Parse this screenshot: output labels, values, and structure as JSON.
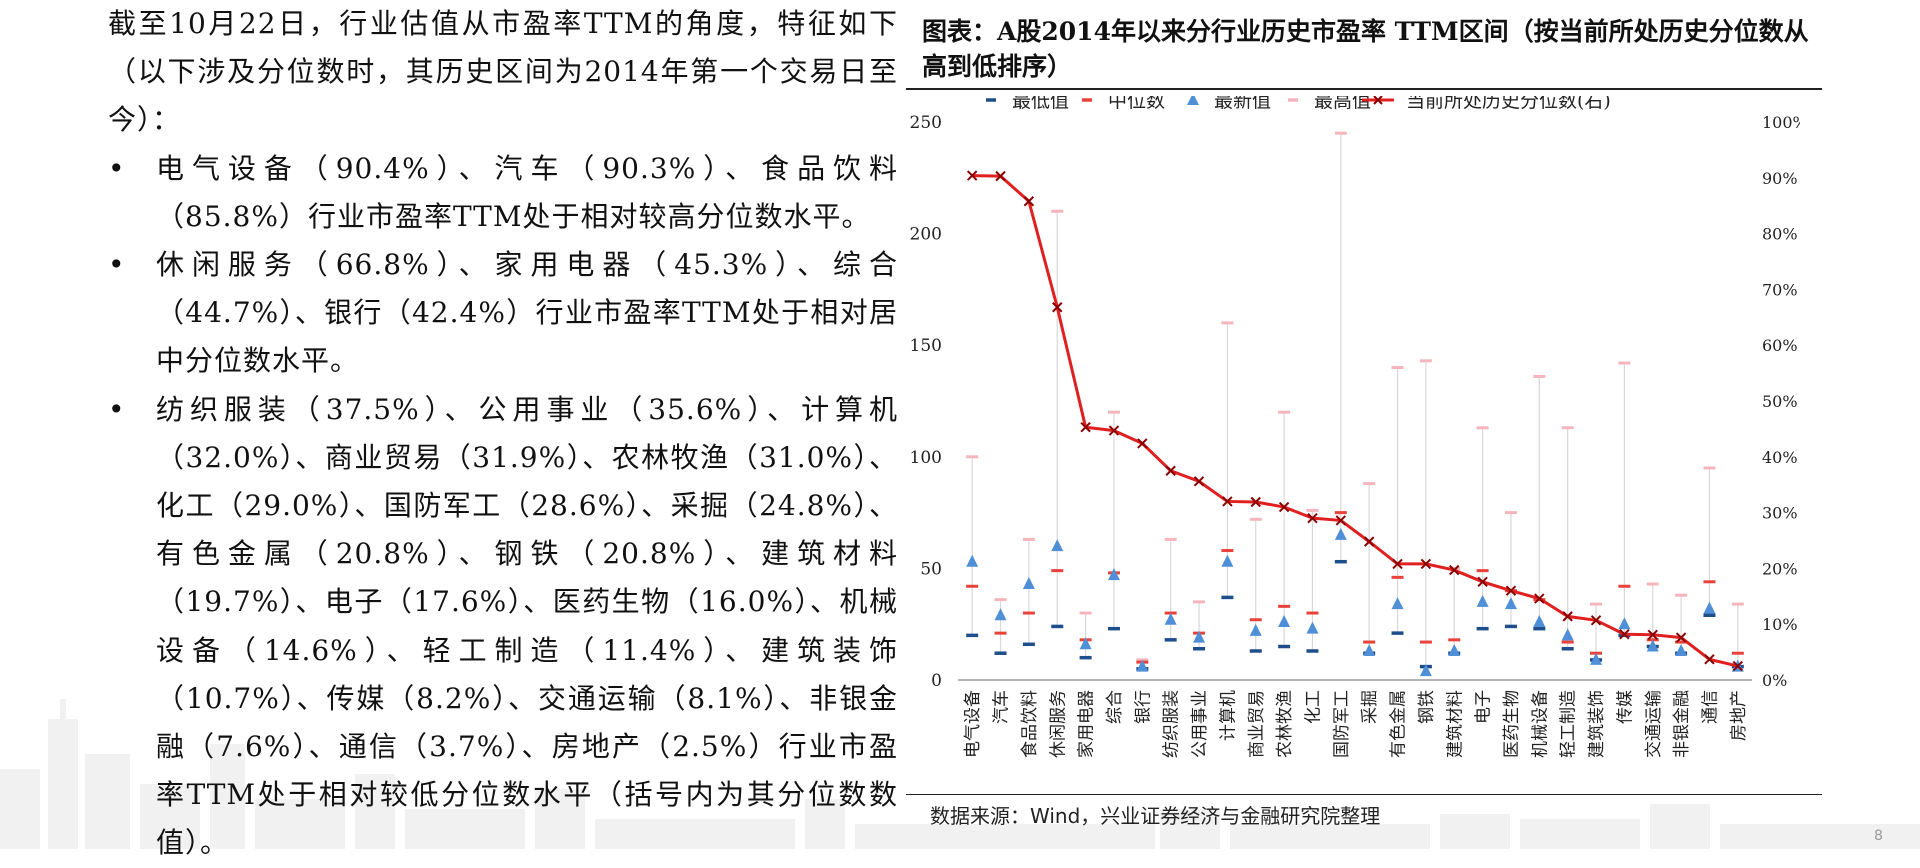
{
  "text": {
    "intro": "截至10月22日，行业估值从市盈率TTM的角度，特征如下（以下涉及分位数时，其历史区间为2014年第一个交易日至今）：",
    "bullets": [
      "电气设备（90.4%）、汽车（90.3%）、食品饮料（85.8%）行业市盈率TTM处于相对较高分位数水平。",
      "休闲服务（66.8%）、家用电器（45.3%）、综合（44.7%）、银行（42.4%）行业市盈率TTM处于相对居中分位数水平。",
      "纺织服装（37.5%）、公用事业（35.6%）、计算机（32.0%）、商业贸易（31.9%）、农林牧渔（31.0%）、化工（29.0%）、国防军工（28.6%）、采掘（24.8%）、有色金属（20.8%）、钢铁（20.8%）、建筑材料（19.7%）、电子（17.6%）、医药生物（16.0%）、机械设备（14.6%）、轻工制造（11.4%）、建筑装饰（10.7%）、传媒（8.2%）、交通运输（8.1%）、非银金融（7.6%）、通信（3.7%）、房地产（2.5%）行业市盈率TTM处于相对较低分位数水平（括号内为其分位数数值）。"
    ]
  },
  "source_note": "数据来源：Wind，兴业证券经济与金融研究院整理",
  "page_number": "8",
  "colors": {
    "min_marker": "#1f4e8c",
    "median_marker": "#e8423a",
    "latest_marker": "#4f8fd8",
    "max_marker": "#f4b6bc",
    "percentile_line": "#e02020",
    "whisker": "#d8d8d8"
  },
  "chart_data": {
    "type": "line",
    "title": "图表：A股2014年以来分行业历史市盈率 TTM区间（按当前所处历史分位数从高到低排序）",
    "categories": [
      "电气设备",
      "汽车",
      "食品饮料",
      "休闲服务",
      "家用电器",
      "综合",
      "银行",
      "纺织服装",
      "公用事业",
      "计算机",
      "商业贸易",
      "农林牧渔",
      "化工",
      "国防军工",
      "采掘",
      "有色金属",
      "钢铁",
      "建筑材料",
      "电子",
      "医药生物",
      "机械设备",
      "轻工制造",
      "建筑装饰",
      "传媒",
      "交通运输",
      "非银金融",
      "通信",
      "房地产"
    ],
    "ylim_left": [
      0,
      250
    ],
    "yticks_left": [
      0,
      50,
      100,
      150,
      200,
      250
    ],
    "ylim_right": [
      0,
      1
    ],
    "yticks_right": [
      "0%",
      "10%",
      "20%",
      "30%",
      "40%",
      "50%",
      "60%",
      "70%",
      "80%",
      "90%",
      "100%"
    ],
    "grid": false,
    "legend_position": "top",
    "series": [
      {
        "name": "最低值",
        "axis": "left",
        "marker": "dash",
        "values": [
          20,
          12,
          16,
          24,
          10,
          23,
          5,
          18,
          14,
          37,
          13,
          15,
          13,
          53,
          12,
          21,
          6,
          12,
          23,
          24,
          23,
          14,
          9,
          20,
          15,
          12,
          29,
          6
        ]
      },
      {
        "name": "中位数",
        "axis": "left",
        "marker": "dash",
        "values": [
          42,
          21,
          30,
          49,
          18,
          48,
          8,
          30,
          21,
          58,
          27,
          33,
          30,
          75,
          17,
          46,
          17,
          18,
          49,
          40,
          36,
          17,
          12,
          42,
          18,
          17,
          44,
          12
        ]
      },
      {
        "name": "最新值",
        "axis": "left",
        "marker": "triangle",
        "values": [
          53,
          29,
          43,
          60,
          16,
          47,
          6,
          27,
          19,
          53,
          22,
          26,
          23,
          65,
          13,
          34,
          4,
          13,
          35,
          34,
          26,
          20,
          9,
          25,
          15,
          13,
          32,
          6
        ]
      },
      {
        "name": "最高值",
        "axis": "left",
        "marker": "dash",
        "values": [
          100,
          36,
          63,
          210,
          30,
          120,
          9,
          63,
          35,
          160,
          72,
          120,
          76,
          245,
          88,
          140,
          143,
          50,
          113,
          75,
          136,
          113,
          34,
          142,
          43,
          38,
          95,
          34
        ]
      },
      {
        "name": "当前所处历史分位数(右)",
        "axis": "right",
        "marker": "x",
        "values": [
          0.904,
          0.903,
          0.858,
          0.668,
          0.453,
          0.447,
          0.424,
          0.375,
          0.356,
          0.32,
          0.319,
          0.31,
          0.29,
          0.286,
          0.248,
          0.208,
          0.208,
          0.197,
          0.176,
          0.16,
          0.146,
          0.114,
          0.107,
          0.082,
          0.081,
          0.076,
          0.037,
          0.025
        ]
      }
    ]
  }
}
